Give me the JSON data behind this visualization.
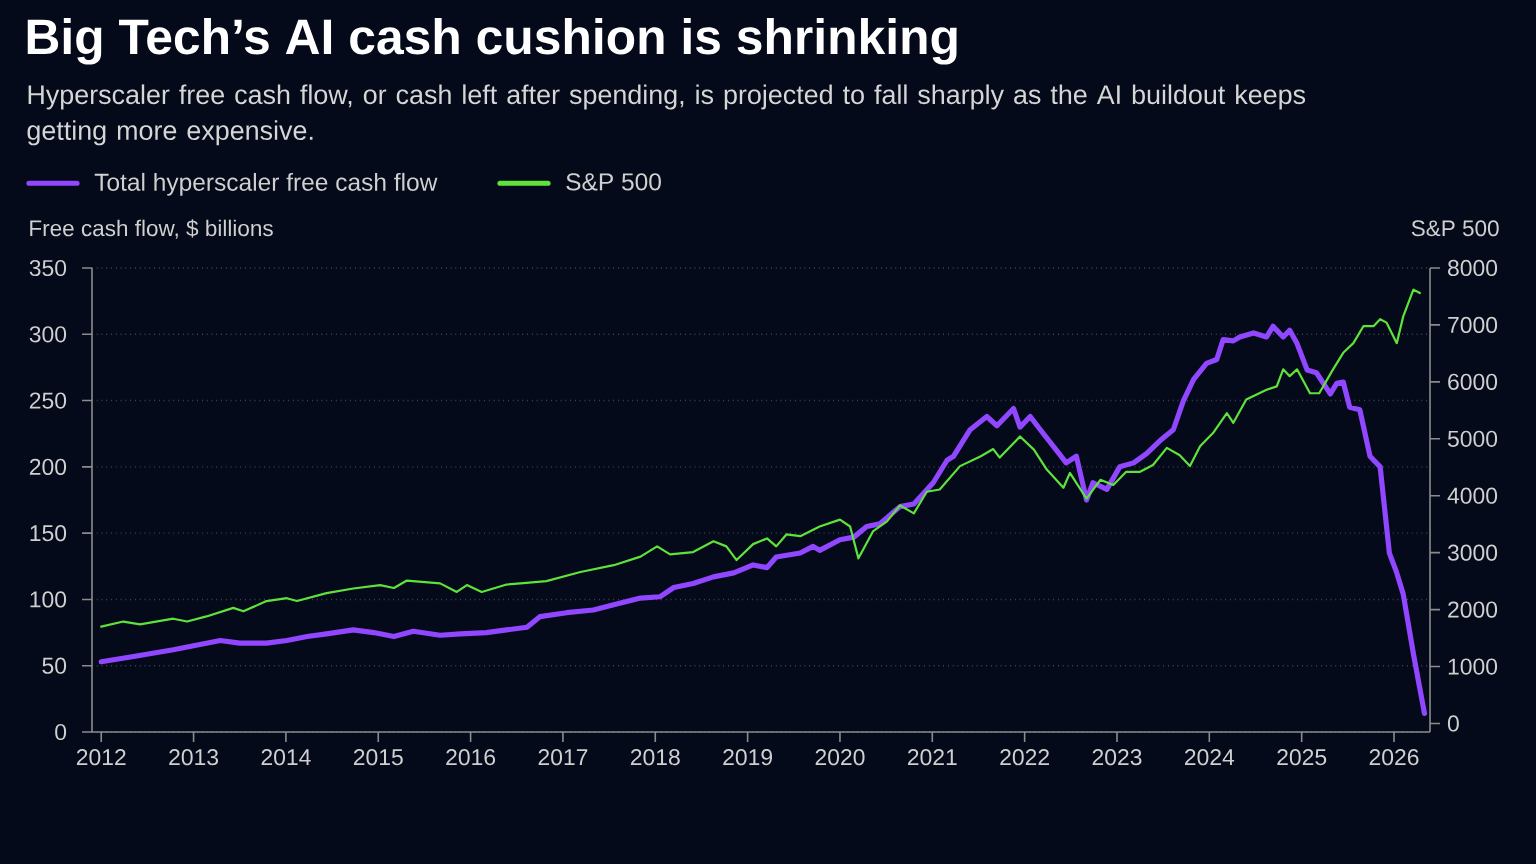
{
  "chart_data": {
    "type": "line",
    "title": "Big Tech’s AI cash cushion is shrinking",
    "subtitle": "Hyperscaler free cash flow, or cash left after spending, is projected to fall sharply as the AI buildout keeps getting more expensive.",
    "ylabel": "Free cash flow, $ billions",
    "y2label": "S&P 500",
    "xlim": [
      2011.9,
      2026.39
    ],
    "xticks": [
      2012,
      2013,
      2014,
      2015,
      2016,
      2017,
      2018,
      2019,
      2020,
      2021,
      2022,
      2023,
      2024,
      2025,
      2026
    ],
    "ylim": [
      0,
      350
    ],
    "yticks": [
      0,
      50,
      100,
      150,
      200,
      250,
      300,
      350
    ],
    "y2lim": [
      -150,
      8000
    ],
    "y2ticks": [
      0,
      1000,
      2000,
      3000,
      4000,
      5000,
      6000,
      7000,
      8000
    ],
    "grid": "y",
    "legend": "top left",
    "series": [
      {
        "name": "Total hyperscaler free cash flow",
        "color": "#9146ff",
        "x": [
          2012.0,
          2012.35,
          2012.78,
          2013.0,
          2013.29,
          2013.5,
          2013.79,
          2014.01,
          2014.23,
          2014.44,
          2014.73,
          2014.95,
          2015.17,
          2015.38,
          2015.67,
          2015.89,
          2016.17,
          2016.39,
          2016.61,
          2016.75,
          2017.04,
          2017.33,
          2017.55,
          2017.84,
          2018.05,
          2018.2,
          2018.41,
          2018.63,
          2018.85,
          2019.06,
          2019.21,
          2019.31,
          2019.57,
          2019.71,
          2019.78,
          2020.0,
          2020.15,
          2020.29,
          2020.43,
          2020.65,
          2020.8,
          2021.01,
          2021.16,
          2021.23,
          2021.41,
          2021.59,
          2021.7,
          2021.88,
          2021.95,
          2022.06,
          2022.17,
          2022.35,
          2022.45,
          2022.56,
          2022.67,
          2022.74,
          2022.89,
          2023.03,
          2023.18,
          2023.32,
          2023.47,
          2023.61,
          2023.72,
          2023.83,
          2023.97,
          2024.08,
          2024.15,
          2024.26,
          2024.33,
          2024.48,
          2024.62,
          2024.69,
          2024.8,
          2024.87,
          2024.95,
          2025.06,
          2025.16,
          2025.31,
          2025.38,
          2025.45,
          2025.52,
          2025.63,
          2025.74,
          2025.85,
          2025.95,
          2026.03,
          2026.1,
          2026.21,
          2026.33
        ],
        "values": [
          53,
          57,
          62,
          65,
          69,
          67,
          67,
          69,
          72,
          74,
          77,
          75,
          72,
          76,
          73,
          74,
          75,
          77,
          79,
          87,
          90,
          92,
          96,
          101,
          102,
          109,
          112,
          117,
          120,
          126,
          124,
          132,
          135,
          140,
          137,
          145,
          147,
          155,
          157,
          170,
          172,
          188,
          205,
          208,
          228,
          238,
          231,
          244,
          230,
          238,
          228,
          212,
          203,
          208,
          175,
          188,
          183,
          200,
          203,
          210,
          220,
          228,
          250,
          266,
          278,
          281,
          296,
          295,
          298,
          301,
          298,
          306,
          298,
          303,
          293,
          273,
          271,
          255,
          263,
          264,
          245,
          243,
          208,
          200,
          135,
          120,
          104,
          59,
          14
        ]
      },
      {
        "name": "S&P 500",
        "color": "#5ee23c",
        "axis": "y2",
        "x": [
          2012.0,
          2012.24,
          2012.42,
          2012.78,
          2012.93,
          2013.14,
          2013.43,
          2013.54,
          2013.79,
          2014.01,
          2014.12,
          2014.44,
          2014.73,
          2015.02,
          2015.17,
          2015.31,
          2015.67,
          2015.85,
          2015.96,
          2016.12,
          2016.39,
          2016.54,
          2016.82,
          2017.19,
          2017.55,
          2017.84,
          2018.02,
          2018.16,
          2018.41,
          2018.63,
          2018.77,
          2018.88,
          2019.06,
          2019.21,
          2019.31,
          2019.42,
          2019.57,
          2019.78,
          2020.0,
          2020.11,
          2020.2,
          2020.36,
          2020.51,
          2020.65,
          2020.8,
          2020.94,
          2021.08,
          2021.3,
          2021.52,
          2021.66,
          2021.73,
          2021.95,
          2022.1,
          2022.24,
          2022.42,
          2022.49,
          2022.67,
          2022.82,
          2022.96,
          2023.1,
          2023.25,
          2023.39,
          2023.54,
          2023.68,
          2023.79,
          2023.9,
          2024.04,
          2024.19,
          2024.26,
          2024.4,
          2024.62,
          2024.73,
          2024.8,
          2024.87,
          2024.95,
          2025.09,
          2025.19,
          2025.34,
          2025.45,
          2025.56,
          2025.67,
          2025.78,
          2025.85,
          2025.92,
          2026.03,
          2026.1,
          2026.21,
          2026.28
        ],
        "values": [
          1700,
          1790,
          1740,
          1840,
          1790,
          1880,
          2030,
          1970,
          2150,
          2200,
          2150,
          2290,
          2370,
          2430,
          2380,
          2510,
          2460,
          2310,
          2430,
          2310,
          2440,
          2460,
          2500,
          2660,
          2780,
          2930,
          3110,
          2970,
          3010,
          3200,
          3110,
          2870,
          3150,
          3250,
          3110,
          3320,
          3290,
          3460,
          3580,
          3460,
          2900,
          3380,
          3550,
          3830,
          3690,
          4070,
          4110,
          4520,
          4690,
          4820,
          4670,
          5040,
          4810,
          4460,
          4140,
          4400,
          3950,
          4280,
          4190,
          4420,
          4420,
          4540,
          4840,
          4710,
          4520,
          4870,
          5100,
          5450,
          5280,
          5690,
          5860,
          5920,
          6220,
          6100,
          6220,
          5800,
          5800,
          6220,
          6510,
          6680,
          6980,
          6980,
          7100,
          7040,
          6680,
          7150,
          7620,
          7560
        ]
      }
    ]
  }
}
